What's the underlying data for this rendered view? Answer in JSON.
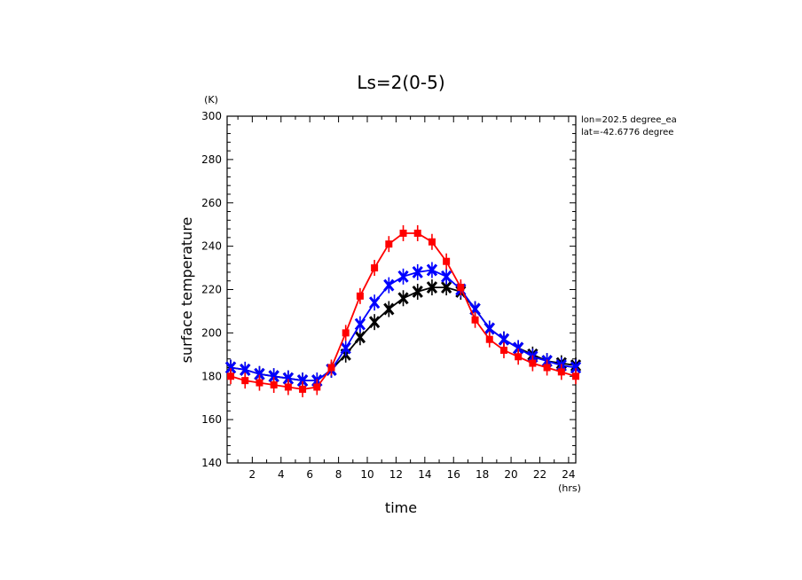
{
  "chart_data": {
    "type": "line",
    "title": "Ls=2(0-5)",
    "xlabel": "time",
    "xunit": "(hrs)",
    "ylabel": "surface temperature",
    "yunit": "(K)",
    "xlim": [
      0.25,
      24.5
    ],
    "ylim": [
      140,
      300
    ],
    "xticks": [
      2,
      4,
      6,
      8,
      10,
      12,
      14,
      16,
      18,
      20,
      22,
      24
    ],
    "yticks": [
      140,
      160,
      180,
      200,
      220,
      240,
      260,
      280,
      300
    ],
    "annotations": [
      "lon=202.5 degree_ea",
      "lat=-42.6776 degree"
    ],
    "x": [
      0.5,
      1.5,
      2.5,
      3.5,
      4.5,
      5.5,
      6.5,
      7.5,
      8.5,
      9.5,
      10.5,
      11.5,
      12.5,
      13.5,
      14.5,
      15.5,
      16.5,
      17.5,
      18.5,
      19.5,
      20.5,
      21.5,
      22.5,
      23.5,
      24.5
    ],
    "series": [
      {
        "color": "#000000",
        "marker": "x",
        "values": [
          184,
          183,
          181,
          180,
          179,
          178,
          178,
          183,
          190,
          198,
          205,
          211,
          216,
          219,
          221,
          221,
          219,
          211,
          202,
          197,
          193,
          190,
          187,
          186,
          185
        ]
      },
      {
        "color": "#0000ff",
        "marker": "x",
        "values": [
          184,
          183,
          181,
          180,
          179,
          178,
          178,
          183,
          193,
          204,
          214,
          222,
          226,
          228,
          229,
          226,
          220,
          211,
          202,
          197,
          193,
          189,
          187,
          185,
          184
        ]
      },
      {
        "color": "#ff0000",
        "marker": "square",
        "values": [
          180,
          178,
          177,
          176,
          175,
          174,
          175,
          184,
          200,
          217,
          230,
          241,
          246,
          246,
          242,
          233,
          221,
          206,
          197,
          192,
          189,
          186,
          184,
          182,
          180
        ]
      }
    ]
  }
}
